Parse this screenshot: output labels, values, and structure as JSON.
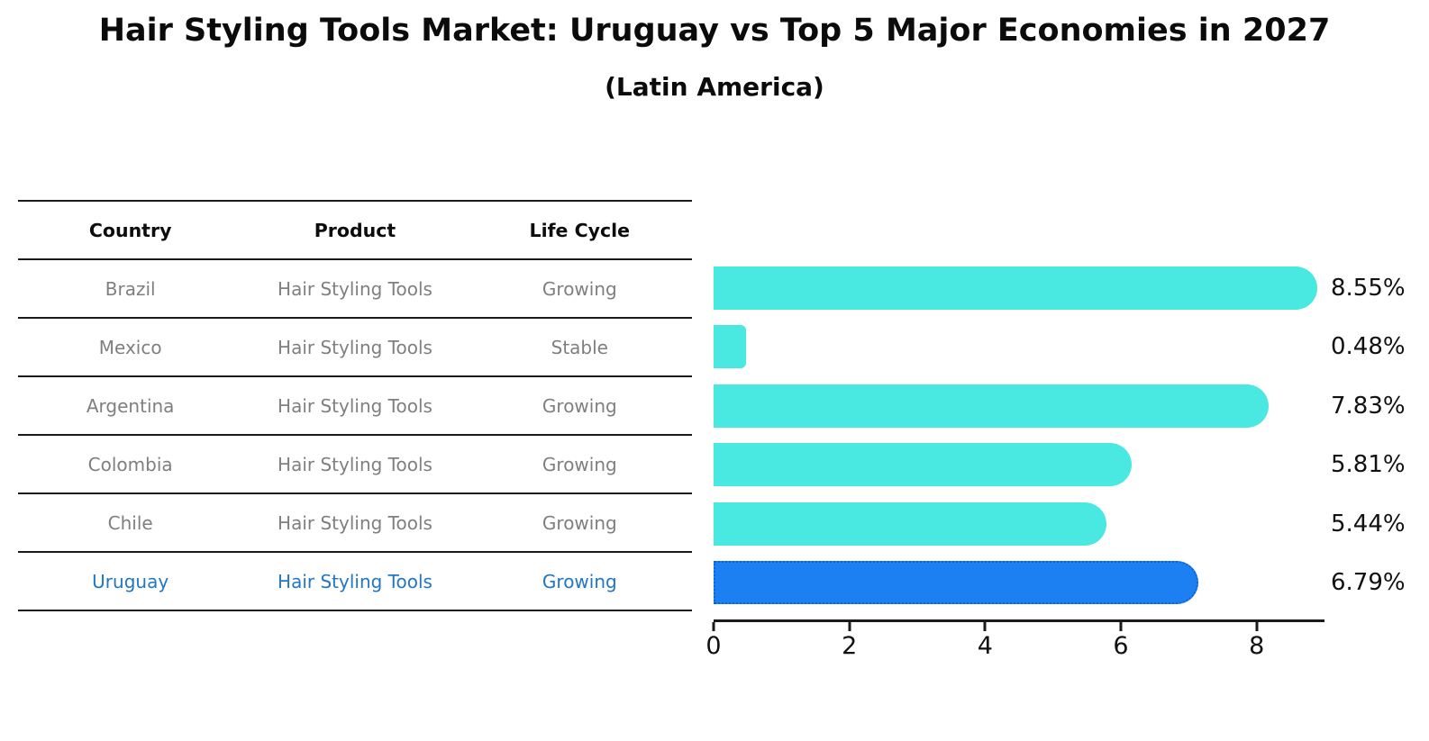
{
  "title": "Hair Styling Tools Market: Uruguay vs Top 5 Major Economies in 2027",
  "subtitle": "(Latin America)",
  "table": {
    "headers": [
      "Country",
      "Product",
      "Life Cycle"
    ],
    "rows": [
      {
        "country": "Brazil",
        "product": "Hair Styling Tools",
        "life_cycle": "Growing",
        "highlight": false
      },
      {
        "country": "Mexico",
        "product": "Hair Styling Tools",
        "life_cycle": "Stable",
        "highlight": false
      },
      {
        "country": "Argentina",
        "product": "Hair Styling Tools",
        "life_cycle": "Growing",
        "highlight": false
      },
      {
        "country": "Colombia",
        "product": "Hair Styling Tools",
        "life_cycle": "Growing",
        "highlight": false
      },
      {
        "country": "Chile",
        "product": "Hair Styling Tools",
        "life_cycle": "Growing",
        "highlight": false
      },
      {
        "country": "Uruguay",
        "product": "Hair Styling Tools",
        "life_cycle": "Growing",
        "highlight": true
      }
    ]
  },
  "chart_data": {
    "type": "bar",
    "orientation": "horizontal",
    "categories": [
      "Brazil",
      "Mexico",
      "Argentina",
      "Colombia",
      "Chile",
      "Uruguay"
    ],
    "values": [
      8.55,
      0.48,
      7.83,
      5.81,
      5.44,
      6.79
    ],
    "value_labels": [
      "8.55%",
      "0.48%",
      "7.83%",
      "5.81%",
      "5.44%",
      "6.79%"
    ],
    "highlight_index": 5,
    "x_ticks": [
      "0",
      "2",
      "4",
      "6",
      "8"
    ],
    "x_tick_values": [
      0,
      2,
      4,
      6,
      8
    ],
    "xlim": [
      0,
      9
    ],
    "grid": false,
    "legend": false,
    "bar_color": "#49e8e0",
    "highlight_bar_color": "#1d80f2",
    "highlight_text_color": "#2176c7",
    "label_color": "#111111"
  }
}
